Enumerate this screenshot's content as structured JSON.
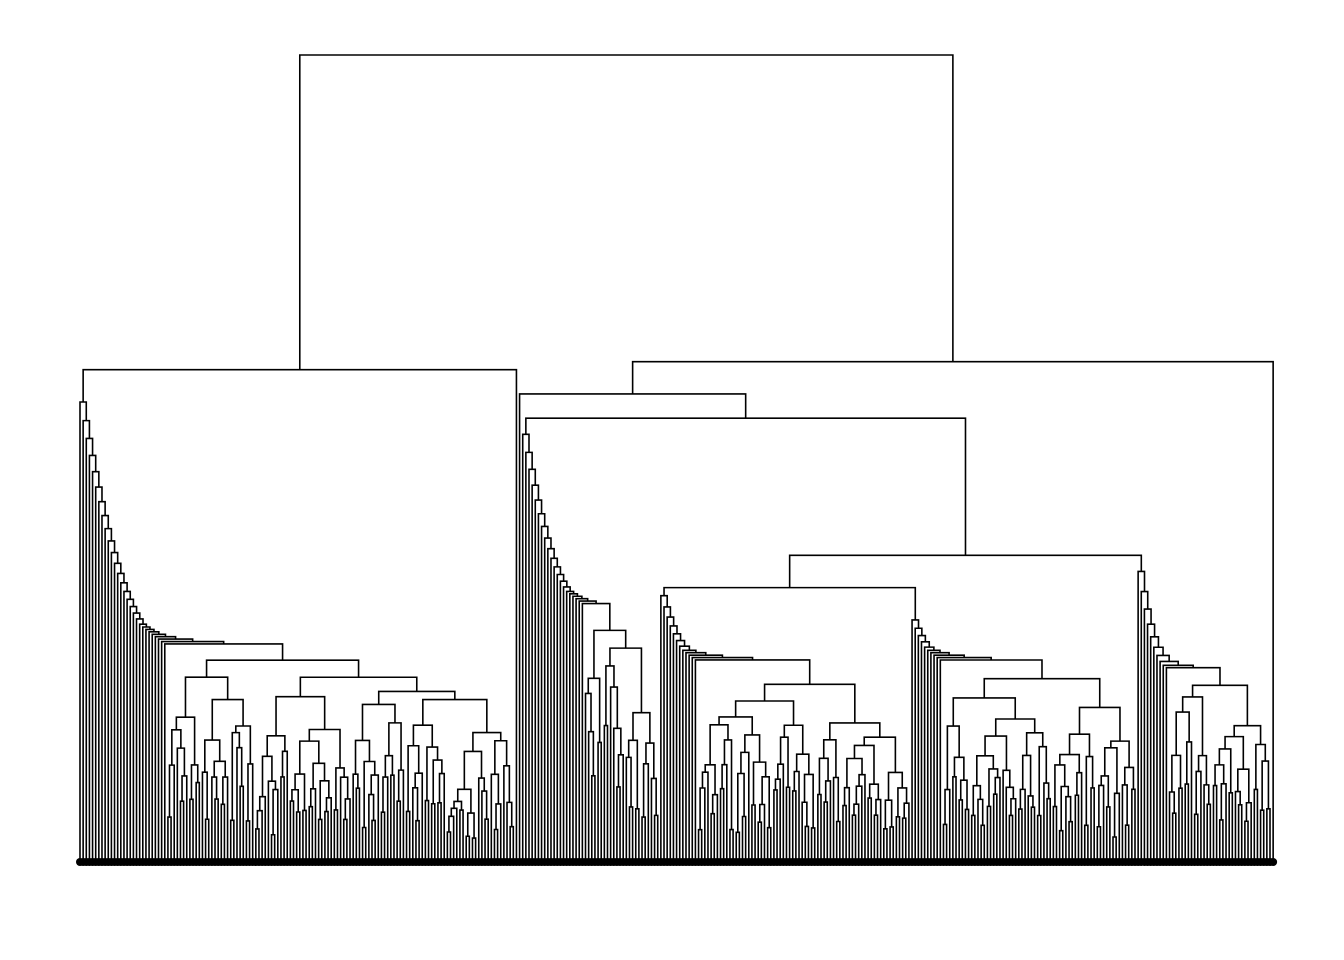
{
  "chart_data": {
    "type": "dendrogram",
    "title": "",
    "xlabel": "",
    "ylabel": "",
    "leaf_count": 380,
    "colors": {
      "line": "#000000",
      "background": "#ffffff"
    },
    "structure": {
      "root_height": 1.0,
      "left_cluster": {
        "leaf_fraction": 0.365,
        "join_height": 0.61,
        "cascade_top": 0.57,
        "plateau": 0.27,
        "chain_levels": 28
      },
      "right_cluster": {
        "join_height": 0.62,
        "sub_join_height": 0.58,
        "cascade": {
          "leaf_fraction": 0.115,
          "top": 0.53,
          "plateau": 0.32,
          "chain_levels": 20
        },
        "mid_join_height": 0.38,
        "mid_left": {
          "leaf_fraction": 0.21,
          "top": 0.33,
          "plateau": 0.25,
          "chain_levels": 12
        },
        "mid_right": {
          "leaf_fraction": 0.19,
          "top": 0.3,
          "plateau": 0.25,
          "chain_levels": 10
        },
        "far_right": {
          "leaf_fraction": 0.12,
          "top": 0.36,
          "plateau": 0.24,
          "chain_levels": 10
        }
      }
    },
    "leaf_label_rows": 1,
    "grid": false,
    "legend": "none"
  }
}
